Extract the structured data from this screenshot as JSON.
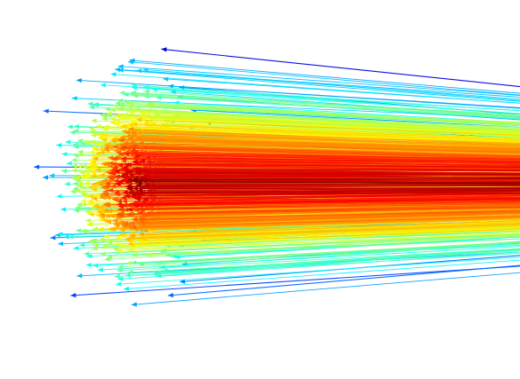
{
  "figure": {
    "description_free": true,
    "colormap": [
      "#00007f",
      "#0000ff",
      "#007fff",
      "#00ffff",
      "#7fff7f",
      "#ffff00",
      "#ff7f00",
      "#ff0000",
      "#7f0000"
    ],
    "background": "#ffffff",
    "marker_shape": "arrowhead",
    "line_count": 900,
    "seed": 7
  }
}
